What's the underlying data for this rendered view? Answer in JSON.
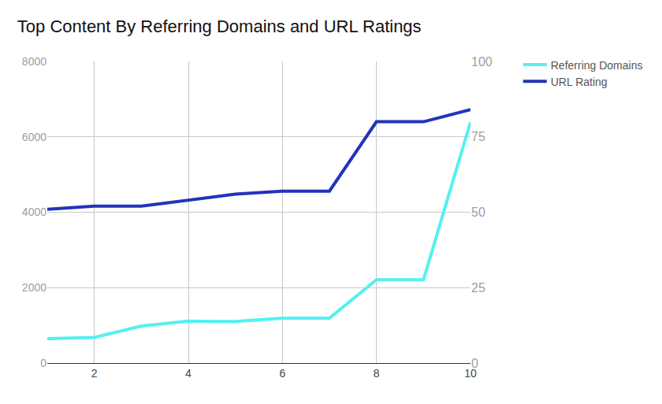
{
  "chart_data": {
    "type": "line",
    "title": "Top Content By Referring Domains and URL Ratings",
    "x": [
      1,
      2,
      3,
      4,
      5,
      6,
      7,
      8,
      9,
      10
    ],
    "series": [
      {
        "name": "Referring Domains",
        "color": "#55f0f0",
        "values": [
          650,
          680,
          980,
          1110,
          1100,
          1190,
          1190,
          2210,
          2210,
          6390
        ]
      },
      {
        "name": "URL Rating",
        "color": "#2233bb",
        "axis": "y2",
        "values": [
          51,
          52,
          52,
          54,
          56,
          57,
          57,
          80,
          80,
          84
        ]
      }
    ],
    "xlim": [
      1,
      10
    ],
    "xticks": [
      2,
      4,
      6,
      8,
      10
    ],
    "ylim": [
      0,
      8000
    ],
    "yticks": [
      0,
      2000,
      4000,
      6000,
      8000
    ],
    "y2lim": [
      0,
      100
    ],
    "y2ticks": [
      0,
      25,
      50,
      75,
      100
    ],
    "grid": true,
    "legend": "top right"
  }
}
